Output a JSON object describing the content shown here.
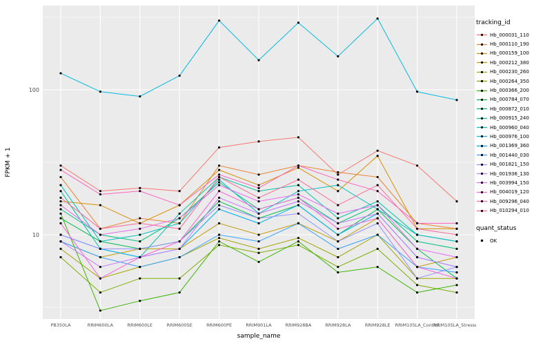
{
  "axes": {
    "x_title": "sample_name",
    "y_title": "FPKM + 1",
    "y_tick_labels": [
      "100",
      "10"
    ]
  },
  "legend": {
    "tracking_title": "tracking_id",
    "quant_title": "quant_status",
    "quant_ok_label": "OK"
  },
  "colors": {
    "panel_background": "#EBEBEB",
    "gridline": "#FFFFFF",
    "tick_label": "#4D4D4D",
    "point": "#000000"
  },
  "chart_data": {
    "type": "line",
    "title": "",
    "xlabel": "sample_name",
    "ylabel": "FPKM + 1",
    "y_scale": "log10",
    "ylim": [
      2.6,
      380
    ],
    "y_major_breaks": [
      10,
      100
    ],
    "y_minor_breaks": [
      3.162,
      31.623,
      316.228
    ],
    "grid": true,
    "legend_position": "right",
    "point_marker": "black-dot",
    "categories": [
      "PB350LA",
      "RRIM600LA",
      "RRIM600LE",
      "RRIM600SE",
      "RRIM600PE",
      "RRIM901LA",
      "RRIM928BA",
      "RRIM928LA",
      "RRIM928LE",
      "RRIM105LA_Control",
      "RRIM105LA_Stressed"
    ],
    "series": [
      {
        "name": "Hb_000031_110",
        "color": "#F8766D",
        "values": [
          30,
          20,
          21,
          20,
          40,
          44,
          47,
          26,
          38,
          30,
          17
        ]
      },
      {
        "name": "Hb_000110_190",
        "color": "#EA8331",
        "values": [
          25,
          11,
          13,
          12,
          30,
          26,
          30,
          27,
          25,
          12,
          11
        ]
      },
      {
        "name": "Hb_000159_100",
        "color": "#D89000",
        "values": [
          17,
          16,
          12,
          16,
          28,
          22,
          29,
          20,
          35,
          11,
          11
        ]
      },
      {
        "name": "Hb_000212_380",
        "color": "#C09B00",
        "values": [
          9,
          7,
          8,
          8,
          12,
          10,
          12,
          9,
          13,
          6,
          7
        ]
      },
      {
        "name": "Hb_000230_260",
        "color": "#A3A500",
        "values": [
          8,
          5,
          6,
          7,
          9.5,
          8,
          9.5,
          7,
          10,
          5,
          5
        ]
      },
      {
        "name": "Hb_000264_350",
        "color": "#7CAE00",
        "values": [
          7,
          4,
          5,
          5,
          8.5,
          7.5,
          8.5,
          6,
          8,
          4.5,
          4
        ]
      },
      {
        "name": "Hb_000366_200",
        "color": "#39B600",
        "values": [
          14,
          3,
          3.5,
          4,
          9,
          6.5,
          9,
          5.5,
          6,
          4,
          4.5
        ]
      },
      {
        "name": "Hb_000784_070",
        "color": "#00BB4E",
        "values": [
          13,
          9,
          8,
          9,
          17,
          13,
          16,
          10,
          15,
          8,
          5
        ]
      },
      {
        "name": "Hb_000872_010",
        "color": "#00BF7D",
        "values": [
          15,
          10,
          9,
          13,
          23,
          15,
          18,
          12,
          16,
          9,
          8
        ]
      },
      {
        "name": "Hb_000915_240",
        "color": "#00C1A3",
        "values": [
          20,
          8,
          7,
          14,
          25,
          20,
          22,
          13,
          17,
          10,
          9
        ]
      },
      {
        "name": "Hb_000960_040",
        "color": "#00BFC4",
        "values": [
          22,
          9,
          10,
          12,
          24,
          14,
          20,
          22,
          15,
          10,
          9
        ]
      },
      {
        "name": "Hb_000976_100",
        "color": "#00BAE0",
        "values": [
          130,
          97,
          90,
          125,
          300,
          160,
          290,
          170,
          310,
          97,
          85
        ]
      },
      {
        "name": "Hb_001369_360",
        "color": "#00B0F6",
        "values": [
          10,
          8,
          7,
          8,
          15,
          12,
          16,
          10,
          14,
          7,
          6
        ]
      },
      {
        "name": "Hb_001440_030",
        "color": "#35A2FF",
        "values": [
          9,
          7,
          6,
          7,
          10,
          9,
          12,
          8,
          10,
          6,
          5.5
        ]
      },
      {
        "name": "Hb_001821_150",
        "color": "#9590FF",
        "values": [
          10,
          8,
          8,
          9,
          16,
          13,
          14,
          9,
          12,
          5,
          6
        ]
      },
      {
        "name": "Hb_001936_130",
        "color": "#C77CFF",
        "values": [
          9,
          6,
          7,
          8,
          18,
          14,
          17,
          12,
          14,
          7,
          6
        ]
      },
      {
        "name": "Hb_003994_150",
        "color": "#E76BF3",
        "values": [
          16,
          10,
          11,
          13,
          22,
          17,
          19,
          14,
          16,
          8,
          7
        ]
      },
      {
        "name": "Hb_004019_120",
        "color": "#FA62DB",
        "values": [
          12,
          5,
          7,
          9,
          20,
          15,
          18,
          11,
          13,
          6,
          5
        ]
      },
      {
        "name": "Hb_009296_040",
        "color": "#FF62BC",
        "values": [
          28,
          19,
          20,
          16,
          26,
          21,
          30,
          24,
          20,
          12,
          12
        ]
      },
      {
        "name": "Hb_010294_010",
        "color": "#FF6A98",
        "values": [
          18,
          11,
          12,
          11,
          25,
          18,
          24,
          16,
          22,
          11,
          10
        ]
      }
    ]
  }
}
